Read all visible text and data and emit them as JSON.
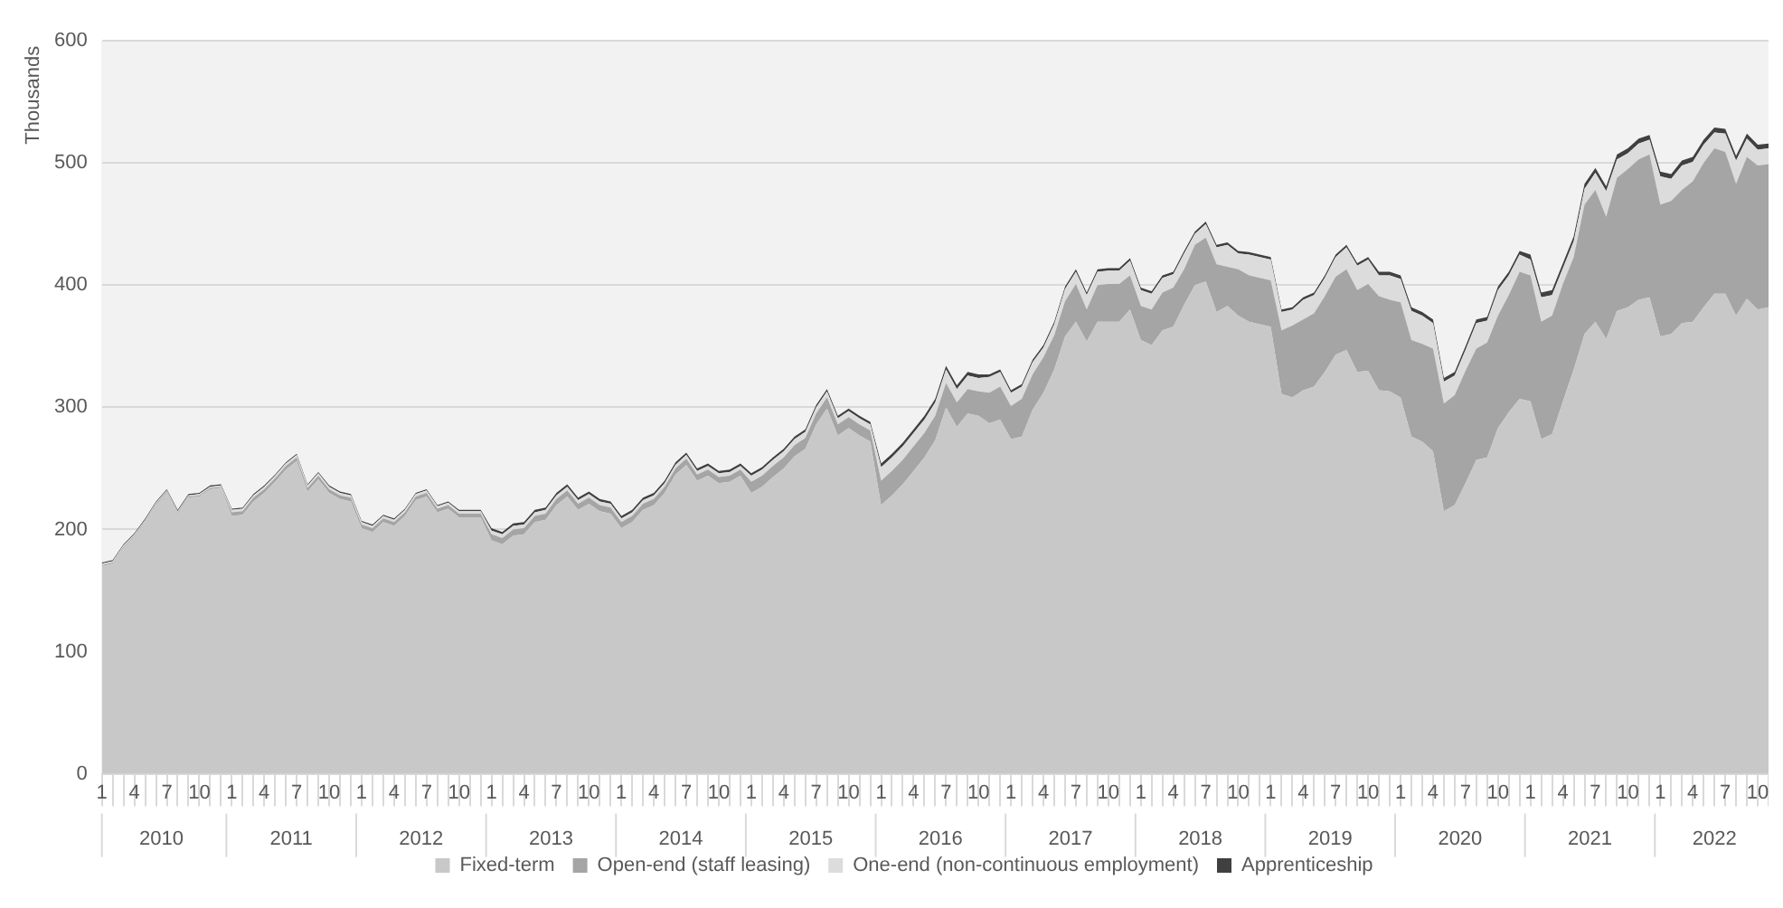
{
  "chart_data": {
    "type": "area",
    "stacked": true,
    "ylabel": "Thousands",
    "ylim": [
      0,
      600
    ],
    "yticks": [
      0,
      100,
      200,
      300,
      400,
      500,
      600
    ],
    "grid": "y",
    "legend": "bottom",
    "categories": [
      "1",
      null,
      null,
      "4",
      null,
      null,
      "7",
      null,
      null,
      "10",
      null,
      null,
      "1",
      null,
      null,
      "4",
      null,
      null,
      "7",
      null,
      null,
      "10",
      null,
      null,
      "1",
      null,
      null,
      "4",
      null,
      null,
      "7",
      null,
      null,
      "10",
      null,
      null,
      "1",
      null,
      null,
      "4",
      null,
      null,
      "7",
      null,
      null,
      "10",
      null,
      null,
      "1",
      null,
      null,
      "4",
      null,
      null,
      "7",
      null,
      null,
      "10",
      null,
      null,
      "1",
      null,
      null,
      "4",
      null,
      null,
      "7",
      null,
      null,
      "10",
      null,
      null,
      "1",
      null,
      null,
      "4",
      null,
      null,
      "7",
      null,
      null,
      "10",
      null,
      null,
      "1",
      null,
      null,
      "4",
      null,
      null,
      "7",
      null,
      null,
      "10",
      null,
      null,
      "1",
      null,
      null,
      "4",
      null,
      null,
      "7",
      null,
      null,
      "10",
      null,
      null,
      "1",
      null,
      null,
      "4",
      null,
      null,
      "7",
      null,
      null,
      "10",
      null,
      null,
      "1",
      null,
      null,
      "4",
      null,
      null,
      "7",
      null,
      null,
      "10",
      null,
      null,
      "1",
      null,
      null,
      "4",
      null,
      null,
      "7",
      null,
      null,
      "10",
      null,
      null,
      "1",
      null,
      null,
      "4",
      null,
      null,
      "7",
      null,
      null,
      "10",
      null
    ],
    "annotations": [
      "2010",
      "2011",
      "2012",
      "2013",
      "2014",
      "2015",
      "2016",
      "2017",
      "2018",
      "2019",
      "2020",
      "2021",
      "2022"
    ],
    "series": [
      {
        "name": "Fixed-term",
        "color": "#c8c8c8",
        "values": [
          170,
          172,
          185,
          194,
          206,
          220,
          230,
          213,
          226,
          227,
          233,
          234,
          211,
          212,
          223,
          230,
          239,
          249,
          256,
          231,
          241,
          230,
          225,
          223,
          201,
          198,
          206,
          203,
          211,
          224,
          227,
          214,
          217,
          210,
          210,
          210,
          191,
          188,
          195,
          196,
          206,
          208,
          220,
          227,
          216,
          221,
          215,
          213,
          201,
          206,
          216,
          220,
          230,
          245,
          253,
          240,
          244,
          238,
          239,
          244,
          230,
          235,
          243,
          250,
          260,
          266,
          286,
          299,
          277,
          283,
          277,
          272,
          220,
          228,
          237,
          248,
          259,
          273,
          300,
          284,
          295,
          293,
          287,
          290,
          274,
          276,
          298,
          312,
          331,
          358,
          370,
          354,
          370,
          370,
          370,
          380,
          355,
          351,
          363,
          366,
          384,
          400,
          403,
          378,
          383,
          375,
          370,
          368,
          366,
          311,
          308,
          314,
          317,
          329,
          343,
          347,
          329,
          330,
          314,
          313,
          308,
          276,
          272,
          264,
          215,
          220,
          238,
          257,
          259,
          283,
          296,
          307,
          305,
          274,
          278,
          305,
          331,
          360,
          370,
          356,
          379,
          382,
          388,
          390,
          358,
          360,
          369,
          370,
          382,
          393,
          393,
          375,
          389,
          380,
          382
        ]
      },
      {
        "name": "Open-end (staff leasing)",
        "color": "#a5a5a5",
        "values": [
          1,
          1,
          1,
          1,
          1,
          1,
          1,
          1,
          1,
          1,
          1,
          1,
          3,
          3,
          3,
          3,
          3,
          3,
          3,
          3,
          3,
          3,
          3,
          3,
          3,
          3,
          3,
          3,
          3,
          3,
          3,
          3,
          3,
          3,
          3,
          3,
          5,
          5,
          5,
          5,
          5,
          5,
          5,
          5,
          5,
          5,
          5,
          5,
          5,
          5,
          5,
          5,
          5,
          5,
          5,
          5,
          5,
          5,
          5,
          5,
          9,
          9,
          9,
          9,
          9,
          9,
          9,
          9,
          9,
          9,
          9,
          9,
          20,
          20,
          20,
          20,
          20,
          20,
          20,
          20,
          20,
          20,
          25,
          27,
          27,
          31,
          29,
          29,
          28,
          29,
          31,
          26,
          30,
          31,
          31,
          28,
          28,
          29,
          31,
          32,
          29,
          33,
          36,
          39,
          32,
          38,
          38,
          38,
          38,
          52,
          59,
          58,
          60,
          62,
          64,
          66,
          67,
          71,
          77,
          75,
          78,
          79,
          80,
          84,
          88,
          90,
          92,
          91,
          94,
          92,
          96,
          104,
          103,
          96,
          97,
          96,
          92,
          106,
          108,
          100,
          109,
          113,
          115,
          117,
          108,
          109,
          109,
          115,
          118,
          119,
          116,
          108,
          116,
          118,
          117
        ]
      },
      {
        "name": "One-end (non-continuous employment)",
        "color": "#dcdcdc",
        "values": [
          1,
          1,
          1,
          1,
          1,
          1,
          1,
          1,
          1,
          1,
          1,
          1,
          2,
          2,
          2,
          2,
          2,
          2,
          2,
          2,
          2,
          2,
          2,
          2,
          2,
          2,
          2,
          2,
          2,
          2,
          2,
          2,
          2,
          2,
          2,
          2,
          3,
          3,
          3,
          3,
          3,
          3,
          3,
          3,
          3,
          3,
          3,
          3,
          3,
          3,
          3,
          3,
          3,
          3,
          3,
          3,
          3,
          3,
          3,
          3,
          5,
          5,
          5,
          5,
          5,
          5,
          5,
          5,
          5,
          5,
          5,
          5,
          11,
          11,
          11,
          11,
          11,
          11,
          11,
          11,
          11,
          11,
          13,
          12,
          11,
          10,
          10,
          8,
          9,
          10,
          10,
          12,
          11,
          11,
          11,
          12,
          13,
          13,
          12,
          11,
          13,
          9,
          11,
          14,
          18,
          13,
          17,
          17,
          17,
          15,
          13,
          16,
          15,
          15,
          16,
          18,
          20,
          20,
          17,
          20,
          19,
          24,
          23,
          21,
          18,
          16,
          17,
          21,
          18,
          21,
          16,
          14,
          13,
          20,
          17,
          13,
          13,
          13,
          14,
          21,
          15,
          13,
          13,
          12,
          23,
          18,
          20,
          16,
          15,
          13,
          15,
          19,
          15,
          13,
          13
        ]
      },
      {
        "name": "Apprenticeship",
        "color": "#404040",
        "values": [
          1,
          1,
          1,
          1,
          1,
          1,
          1,
          1,
          1,
          1,
          1,
          1,
          1,
          1,
          1,
          1,
          1,
          1,
          1,
          1,
          1,
          1,
          1,
          1,
          1,
          1,
          1,
          1,
          1,
          1,
          1,
          1,
          1,
          1,
          1,
          1,
          2,
          2,
          2,
          2,
          2,
          2,
          2,
          2,
          2,
          2,
          2,
          2,
          2,
          2,
          2,
          2,
          2,
          2,
          2,
          2,
          2,
          2,
          2,
          2,
          2,
          2,
          2,
          2,
          2,
          2,
          2,
          2,
          2,
          2,
          2,
          2,
          3,
          3,
          3,
          3,
          3,
          3,
          3,
          3,
          3,
          3,
          2,
          2,
          2,
          2,
          2,
          2,
          2,
          2,
          2,
          2,
          2,
          2,
          2,
          2,
          2,
          2,
          2,
          2,
          2,
          2,
          2,
          2,
          2,
          2,
          2,
          2,
          2,
          2,
          2,
          2,
          2,
          2,
          2,
          2,
          2,
          2,
          3,
          3,
          3,
          3,
          3,
          3,
          3,
          3,
          3,
          3,
          3,
          3,
          3,
          3,
          4,
          4,
          4,
          4,
          4,
          4,
          4,
          4,
          4,
          4,
          4,
          4,
          4,
          4,
          4,
          4,
          4,
          4,
          4,
          4,
          4,
          4,
          4
        ]
      }
    ]
  }
}
